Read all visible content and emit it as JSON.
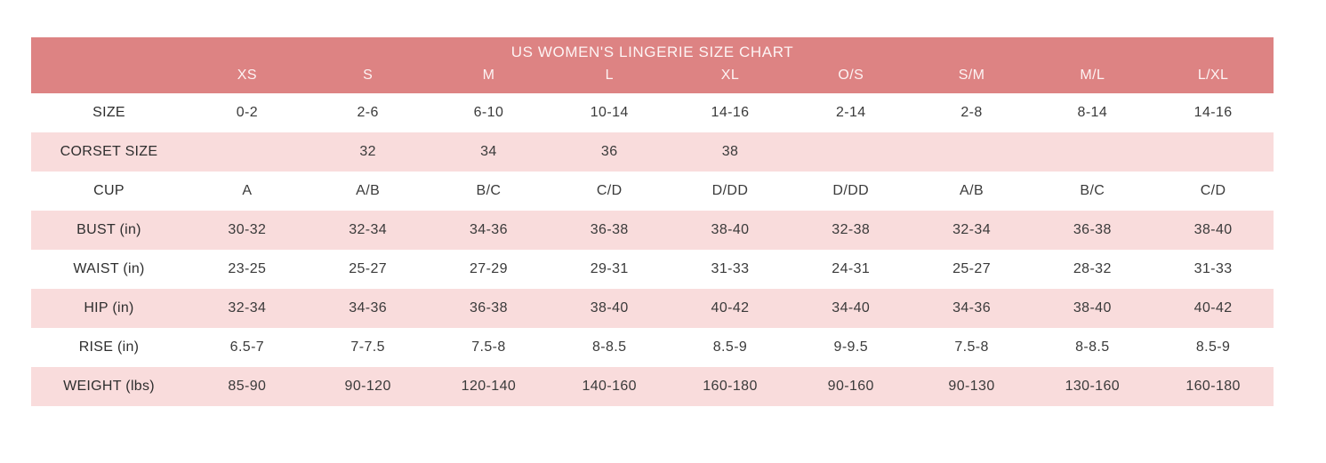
{
  "colors": {
    "header_bg": "#dd8383",
    "header_text": "#fdf4f4",
    "row_alt_bg": "#f9dcdc",
    "row_bg": "#ffffff",
    "cell_text": "#3a3a3a"
  },
  "chart_data": {
    "type": "table",
    "title": "US WOMEN'S LINGERIE SIZE CHART",
    "columns": [
      "XS",
      "S",
      "M",
      "L",
      "XL",
      "O/S",
      "S/M",
      "M/L",
      "L/XL"
    ],
    "rows": [
      {
        "label": "SIZE",
        "values": [
          "0-2",
          "2-6",
          "6-10",
          "10-14",
          "14-16",
          "2-14",
          "2-8",
          "8-14",
          "14-16"
        ]
      },
      {
        "label": "CORSET SIZE",
        "values": [
          "",
          "32",
          "34",
          "36",
          "38",
          "",
          "",
          "",
          ""
        ]
      },
      {
        "label": "CUP",
        "values": [
          "A",
          "A/B",
          "B/C",
          "C/D",
          "D/DD",
          "D/DD",
          "A/B",
          "B/C",
          "C/D"
        ]
      },
      {
        "label": "BUST (in)",
        "values": [
          "30-32",
          "32-34",
          "34-36",
          "36-38",
          "38-40",
          "32-38",
          "32-34",
          "36-38",
          "38-40"
        ]
      },
      {
        "label": "WAIST (in)",
        "values": [
          "23-25",
          "25-27",
          "27-29",
          "29-31",
          "31-33",
          "24-31",
          "25-27",
          "28-32",
          "31-33"
        ]
      },
      {
        "label": "HIP (in)",
        "values": [
          "32-34",
          "34-36",
          "36-38",
          "38-40",
          "40-42",
          "34-40",
          "34-36",
          "38-40",
          "40-42"
        ]
      },
      {
        "label": "RISE (in)",
        "values": [
          "6.5-7",
          "7-7.5",
          "7.5-8",
          "8-8.5",
          "8.5-9",
          "9-9.5",
          "7.5-8",
          "8-8.5",
          "8.5-9"
        ]
      },
      {
        "label": "WEIGHT (lbs)",
        "values": [
          "85-90",
          "90-120",
          "120-140",
          "140-160",
          "160-180",
          "90-160",
          "90-130",
          "130-160",
          "160-180"
        ]
      }
    ],
    "layout": {
      "header_position": "top",
      "row_striping": "alternating-pink-white",
      "striped_rows": [
        "CORSET SIZE",
        "BUST (in)",
        "HIP (in)",
        "WEIGHT (lbs)"
      ]
    }
  }
}
